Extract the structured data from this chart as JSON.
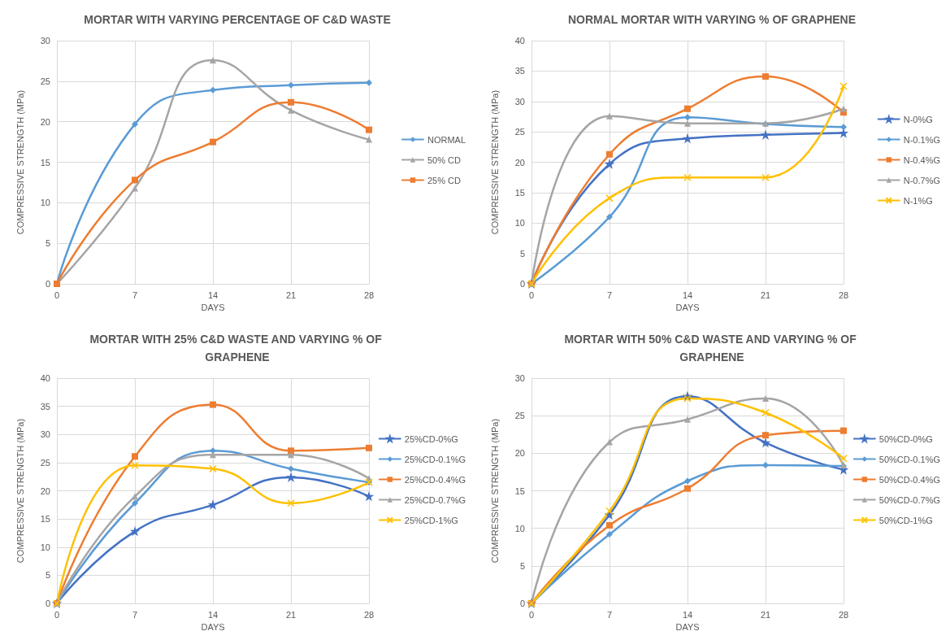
{
  "chart_data": [
    {
      "type": "line",
      "title": "MORTAR WITH VARYING PERCENTAGE OF C&D WASTE",
      "xlabel": "DAYS",
      "ylabel": "COMPRESSIVE STRENGTH (MPa)",
      "x": [
        0,
        7,
        14,
        21,
        28
      ],
      "xlim": [
        0,
        28
      ],
      "xticks": [
        0,
        7,
        14,
        21,
        28
      ],
      "ylim": [
        0,
        30
      ],
      "yticks": [
        0,
        5,
        10,
        15,
        20,
        25,
        30
      ],
      "grid": true,
      "legend": "right",
      "series": [
        {
          "name": "NORMAL",
          "color": "#5b9bd5",
          "marker": "diamond",
          "values": [
            0,
            19.7,
            23.9,
            24.5,
            24.8
          ]
        },
        {
          "name": "50% CD",
          "color": "#a5a5a5",
          "marker": "triangle",
          "values": [
            0,
            11.8,
            27.6,
            21.4,
            17.8
          ]
        },
        {
          "name": "25% CD",
          "color": "#ed7d31",
          "marker": "square",
          "values": [
            0,
            12.8,
            17.5,
            22.4,
            19.0
          ]
        }
      ]
    },
    {
      "type": "line",
      "title": "NORMAL MORTAR WITH VARYING % OF GRAPHENE",
      "xlabel": "DAYS",
      "ylabel": "COMPRESSIVE STRENGTH (MPa)",
      "x": [
        0,
        7,
        14,
        21,
        28
      ],
      "xlim": [
        0,
        28
      ],
      "xticks": [
        0,
        7,
        14,
        21,
        28
      ],
      "ylim": [
        0,
        40
      ],
      "yticks": [
        0,
        5,
        10,
        15,
        20,
        25,
        30,
        35,
        40
      ],
      "grid": true,
      "legend": "right",
      "series": [
        {
          "name": "N-0%G",
          "color": "#4472c4",
          "marker": "star",
          "values": [
            0,
            19.7,
            23.9,
            24.5,
            24.8
          ]
        },
        {
          "name": "N-0.1%G",
          "color": "#5b9bd5",
          "marker": "diamond",
          "values": [
            0,
            11.0,
            27.4,
            26.3,
            25.8
          ]
        },
        {
          "name": "N-0.4%G",
          "color": "#ed7d31",
          "marker": "square",
          "values": [
            0,
            21.3,
            28.8,
            34.1,
            28.2
          ]
        },
        {
          "name": "N-0.7%G",
          "color": "#a5a5a5",
          "marker": "triangle",
          "values": [
            0,
            27.6,
            26.4,
            26.4,
            28.8
          ]
        },
        {
          "name": "N-1%G",
          "color": "#ffc000",
          "marker": "cross",
          "values": [
            0,
            14.1,
            17.5,
            17.5,
            32.5
          ]
        }
      ]
    },
    {
      "type": "line",
      "title": "MORTAR WITH 25% C&D WASTE AND VARYING % OF GRAPHENE",
      "xlabel": "DAYS",
      "ylabel": "COMPRESSIVE STRENGTH (MPa)",
      "x": [
        0,
        7,
        14,
        21,
        28
      ],
      "xlim": [
        0,
        28
      ],
      "xticks": [
        0,
        7,
        14,
        21,
        28
      ],
      "ylim": [
        0,
        40
      ],
      "yticks": [
        0,
        5,
        10,
        15,
        20,
        25,
        30,
        35,
        40
      ],
      "grid": true,
      "legend": "right",
      "series": [
        {
          "name": "25%CD-0%G",
          "color": "#4472c4",
          "marker": "star",
          "values": [
            0,
            12.8,
            17.5,
            22.4,
            19.0
          ]
        },
        {
          "name": "25%CD-0.1%G",
          "color": "#5b9bd5",
          "marker": "diamond",
          "values": [
            0,
            17.8,
            27.1,
            23.9,
            21.5
          ]
        },
        {
          "name": "25%CD-0.4%G",
          "color": "#ed7d31",
          "marker": "square",
          "values": [
            0,
            26.1,
            35.3,
            27.1,
            27.6
          ]
        },
        {
          "name": "25%CD-0.7%G",
          "color": "#a5a5a5",
          "marker": "triangle",
          "values": [
            0,
            19.0,
            26.4,
            26.4,
            22.2
          ]
        },
        {
          "name": "25%CD-1%G",
          "color": "#ffc000",
          "marker": "cross",
          "values": [
            0,
            24.5,
            23.9,
            17.8,
            21.5
          ]
        }
      ]
    },
    {
      "type": "line",
      "title": "MORTAR WITH 50% C&D WASTE AND VARYING % OF GRAPHENE",
      "xlabel": "DAYS",
      "ylabel": "COMPRESSIVE STRENGTH (MPa)",
      "x": [
        0,
        7,
        14,
        21,
        28
      ],
      "xlim": [
        0,
        28
      ],
      "xticks": [
        0,
        7,
        14,
        21,
        28
      ],
      "ylim": [
        0,
        30
      ],
      "yticks": [
        0,
        5,
        10,
        15,
        20,
        25,
        30
      ],
      "grid": true,
      "legend": "right",
      "series": [
        {
          "name": "50%CD-0%G",
          "color": "#4472c4",
          "marker": "star",
          "values": [
            0,
            11.8,
            27.6,
            21.4,
            17.8
          ]
        },
        {
          "name": "50%CD-0.1%G",
          "color": "#5b9bd5",
          "marker": "diamond",
          "values": [
            0,
            9.2,
            16.3,
            18.4,
            18.3
          ]
        },
        {
          "name": "50%CD-0.4%G",
          "color": "#ed7d31",
          "marker": "square",
          "values": [
            0,
            10.4,
            15.3,
            22.4,
            23.0
          ]
        },
        {
          "name": "50%CD-0.7%G",
          "color": "#a5a5a5",
          "marker": "triangle",
          "values": [
            0,
            21.5,
            24.5,
            27.3,
            18.4
          ]
        },
        {
          "name": "50%CD-1%G",
          "color": "#ffc000",
          "marker": "cross",
          "values": [
            0,
            12.3,
            27.3,
            25.4,
            19.3
          ]
        }
      ]
    }
  ]
}
